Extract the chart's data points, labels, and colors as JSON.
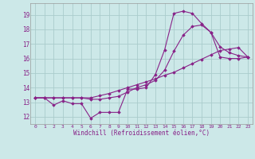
{
  "xlabel": "Windchill (Refroidissement éolien,°C)",
  "bg_color": "#cce8e8",
  "grid_color": "#aacccc",
  "line_color": "#882288",
  "xlim": [
    -0.5,
    23.5
  ],
  "ylim": [
    11.5,
    19.8
  ],
  "xticks": [
    0,
    1,
    2,
    3,
    4,
    5,
    6,
    7,
    8,
    9,
    10,
    11,
    12,
    13,
    14,
    15,
    16,
    17,
    18,
    19,
    20,
    21,
    22,
    23
  ],
  "yticks": [
    12,
    13,
    14,
    15,
    16,
    17,
    18,
    19
  ],
  "line1_x": [
    0,
    1,
    2,
    3,
    4,
    5,
    6,
    7,
    8,
    9,
    10,
    11,
    12,
    13,
    14,
    15,
    16,
    17,
    18,
    19,
    20,
    21,
    22,
    23
  ],
  "line1_y": [
    13.3,
    13.3,
    12.8,
    13.1,
    12.9,
    12.9,
    11.9,
    12.3,
    12.3,
    12.3,
    13.9,
    13.9,
    14.0,
    14.9,
    16.6,
    19.1,
    19.25,
    19.1,
    18.4,
    17.8,
    16.1,
    16.0,
    16.0,
    16.1
  ],
  "line2_x": [
    0,
    1,
    2,
    3,
    4,
    5,
    6,
    7,
    8,
    9,
    10,
    11,
    12,
    13,
    14,
    15,
    16,
    17,
    18,
    19,
    20,
    21,
    22,
    23
  ],
  "line2_y": [
    13.3,
    13.3,
    13.3,
    13.3,
    13.3,
    13.3,
    13.3,
    13.45,
    13.6,
    13.8,
    14.0,
    14.2,
    14.4,
    14.6,
    14.85,
    15.05,
    15.35,
    15.65,
    15.95,
    16.25,
    16.55,
    16.65,
    16.75,
    16.1
  ],
  "line3_x": [
    0,
    1,
    2,
    3,
    4,
    5,
    6,
    7,
    8,
    9,
    10,
    11,
    12,
    13,
    14,
    15,
    16,
    17,
    18,
    19,
    20,
    21,
    22,
    23
  ],
  "line3_y": [
    13.3,
    13.3,
    13.3,
    13.3,
    13.3,
    13.3,
    13.2,
    13.2,
    13.3,
    13.4,
    13.7,
    14.0,
    14.2,
    14.5,
    15.2,
    16.5,
    17.6,
    18.2,
    18.3,
    17.8,
    16.8,
    16.4,
    16.2,
    16.1
  ]
}
